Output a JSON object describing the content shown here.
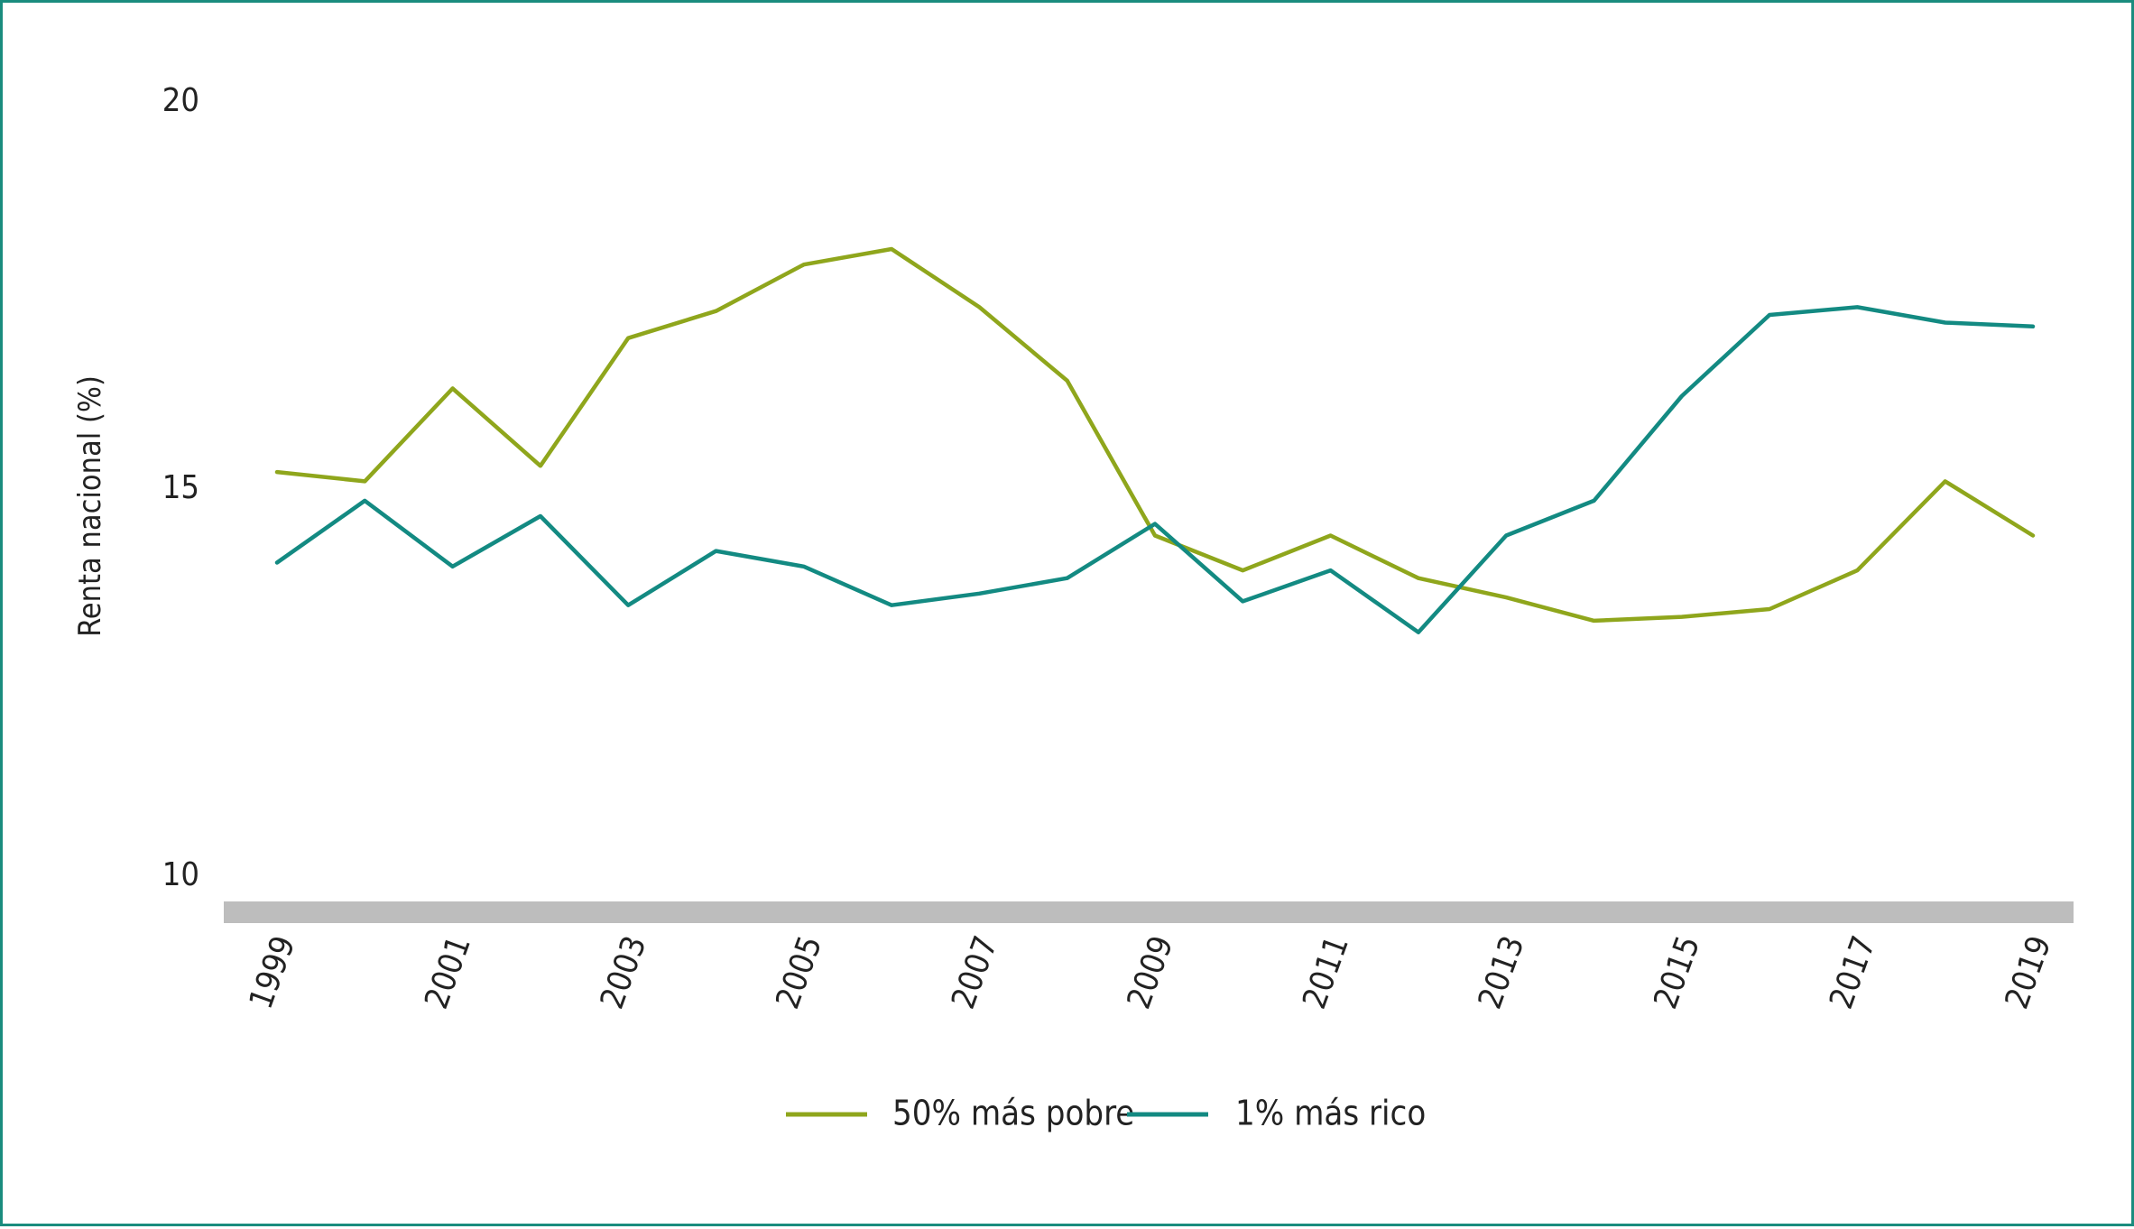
{
  "chart_data": {
    "type": "line",
    "title": "",
    "xlabel": "",
    "ylabel": "Renta nacional (%)",
    "ylim": [
      10,
      20
    ],
    "yticks": [
      10,
      15,
      20
    ],
    "xlim": [
      1999,
      2019
    ],
    "xtick_labels": [
      "1999",
      "2001",
      "2003",
      "2005",
      "2007",
      "2009",
      "2011",
      "2013",
      "2015",
      "2017",
      "2019"
    ],
    "x": [
      1999,
      2000,
      2001,
      2002,
      2003,
      2004,
      2005,
      2006,
      2007,
      2008,
      2009,
      2010,
      2011,
      2012,
      2013,
      2014,
      2015,
      2016,
      2017,
      2018,
      2019
    ],
    "series": [
      {
        "name": "50% más pobre",
        "color": "#8fa61c",
        "values": [
          15.22,
          15.1,
          16.3,
          15.3,
          16.95,
          17.3,
          17.9,
          18.1,
          17.35,
          16.4,
          14.4,
          13.95,
          14.4,
          13.85,
          13.6,
          13.3,
          13.35,
          13.45,
          13.95,
          15.1,
          14.4
        ]
      },
      {
        "name": "1% más rico",
        "color": "#138a82",
        "values": [
          14.05,
          14.85,
          14.0,
          14.65,
          13.5,
          14.2,
          14.0,
          13.5,
          13.65,
          13.85,
          14.55,
          13.55,
          13.95,
          13.15,
          14.4,
          14.85,
          16.2,
          17.25,
          17.35,
          17.15,
          17.1
        ]
      }
    ],
    "grid": false,
    "legend": "bottom-center"
  },
  "colors": {
    "frame": "#1a8c7e",
    "baseline": "#bdbdbd"
  }
}
